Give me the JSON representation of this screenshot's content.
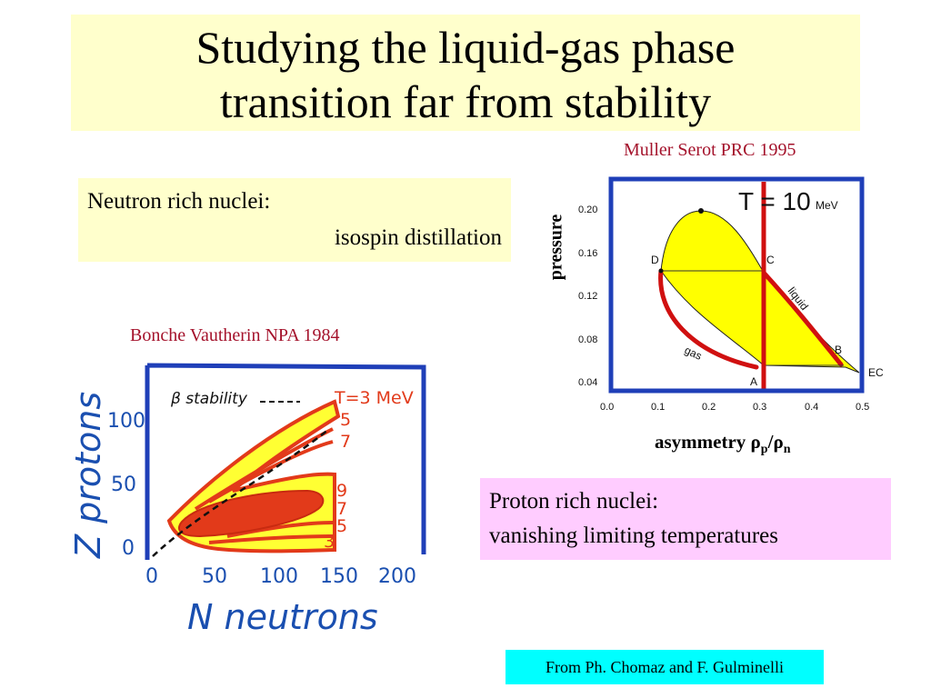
{
  "title": {
    "line1": "Studying the liquid-gas phase",
    "line2": "transition far from stability"
  },
  "citations": {
    "muller": "Muller Serot PRC 1995",
    "bonche": "Bonche Vautherin NPA 1984"
  },
  "notes": {
    "neutron": {
      "line1": "Neutron rich nuclei:",
      "line2": "isospin distillation"
    },
    "proton": {
      "line1": "Proton rich nuclei:",
      "line2": "vanishing limiting temperatures"
    }
  },
  "credit": "From Ph. Chomaz and F. Gulminelli",
  "phase_diagram": {
    "ylabel": "pressure",
    "xlabel_text": "asymmetry ",
    "xlabel_rho": "ρ",
    "xlabel_p": "p",
    "xlabel_slash": "/",
    "xlabel_n": "n",
    "temp_label": "T = 10",
    "temp_unit": "MeV",
    "x_ticks": [
      "0.0",
      "0.1",
      "0.2",
      "0.3",
      "0.4",
      "0.5"
    ],
    "y_ticks": [
      "0.20",
      "0.16",
      "0.12",
      "0.08",
      "0.04"
    ],
    "points": {
      "A": "A",
      "B": "B",
      "C": "C",
      "D": "D",
      "EC": "EC"
    },
    "curve_labels": {
      "liquid": "liquid",
      "gas": "gas"
    },
    "colors": {
      "frame": "#1f3fb8",
      "fill": "#ffff00",
      "curve": "#d01010"
    }
  },
  "nuclear_chart": {
    "ylabel": "Z protons",
    "xlabel": "N neutrons",
    "stability_label": "β stability",
    "x_ticks": [
      "0",
      "50",
      "100",
      "150",
      "200"
    ],
    "y_ticks": [
      "100",
      "50",
      "0"
    ],
    "temp_labels": [
      "T=3 MeV",
      "5",
      "7",
      "9",
      "7",
      "5",
      "3"
    ],
    "colors": {
      "frame": "#1f3fb8",
      "fill": "#ffff33",
      "curve": "#e23a1a",
      "ink": "#1a4fb0"
    }
  }
}
